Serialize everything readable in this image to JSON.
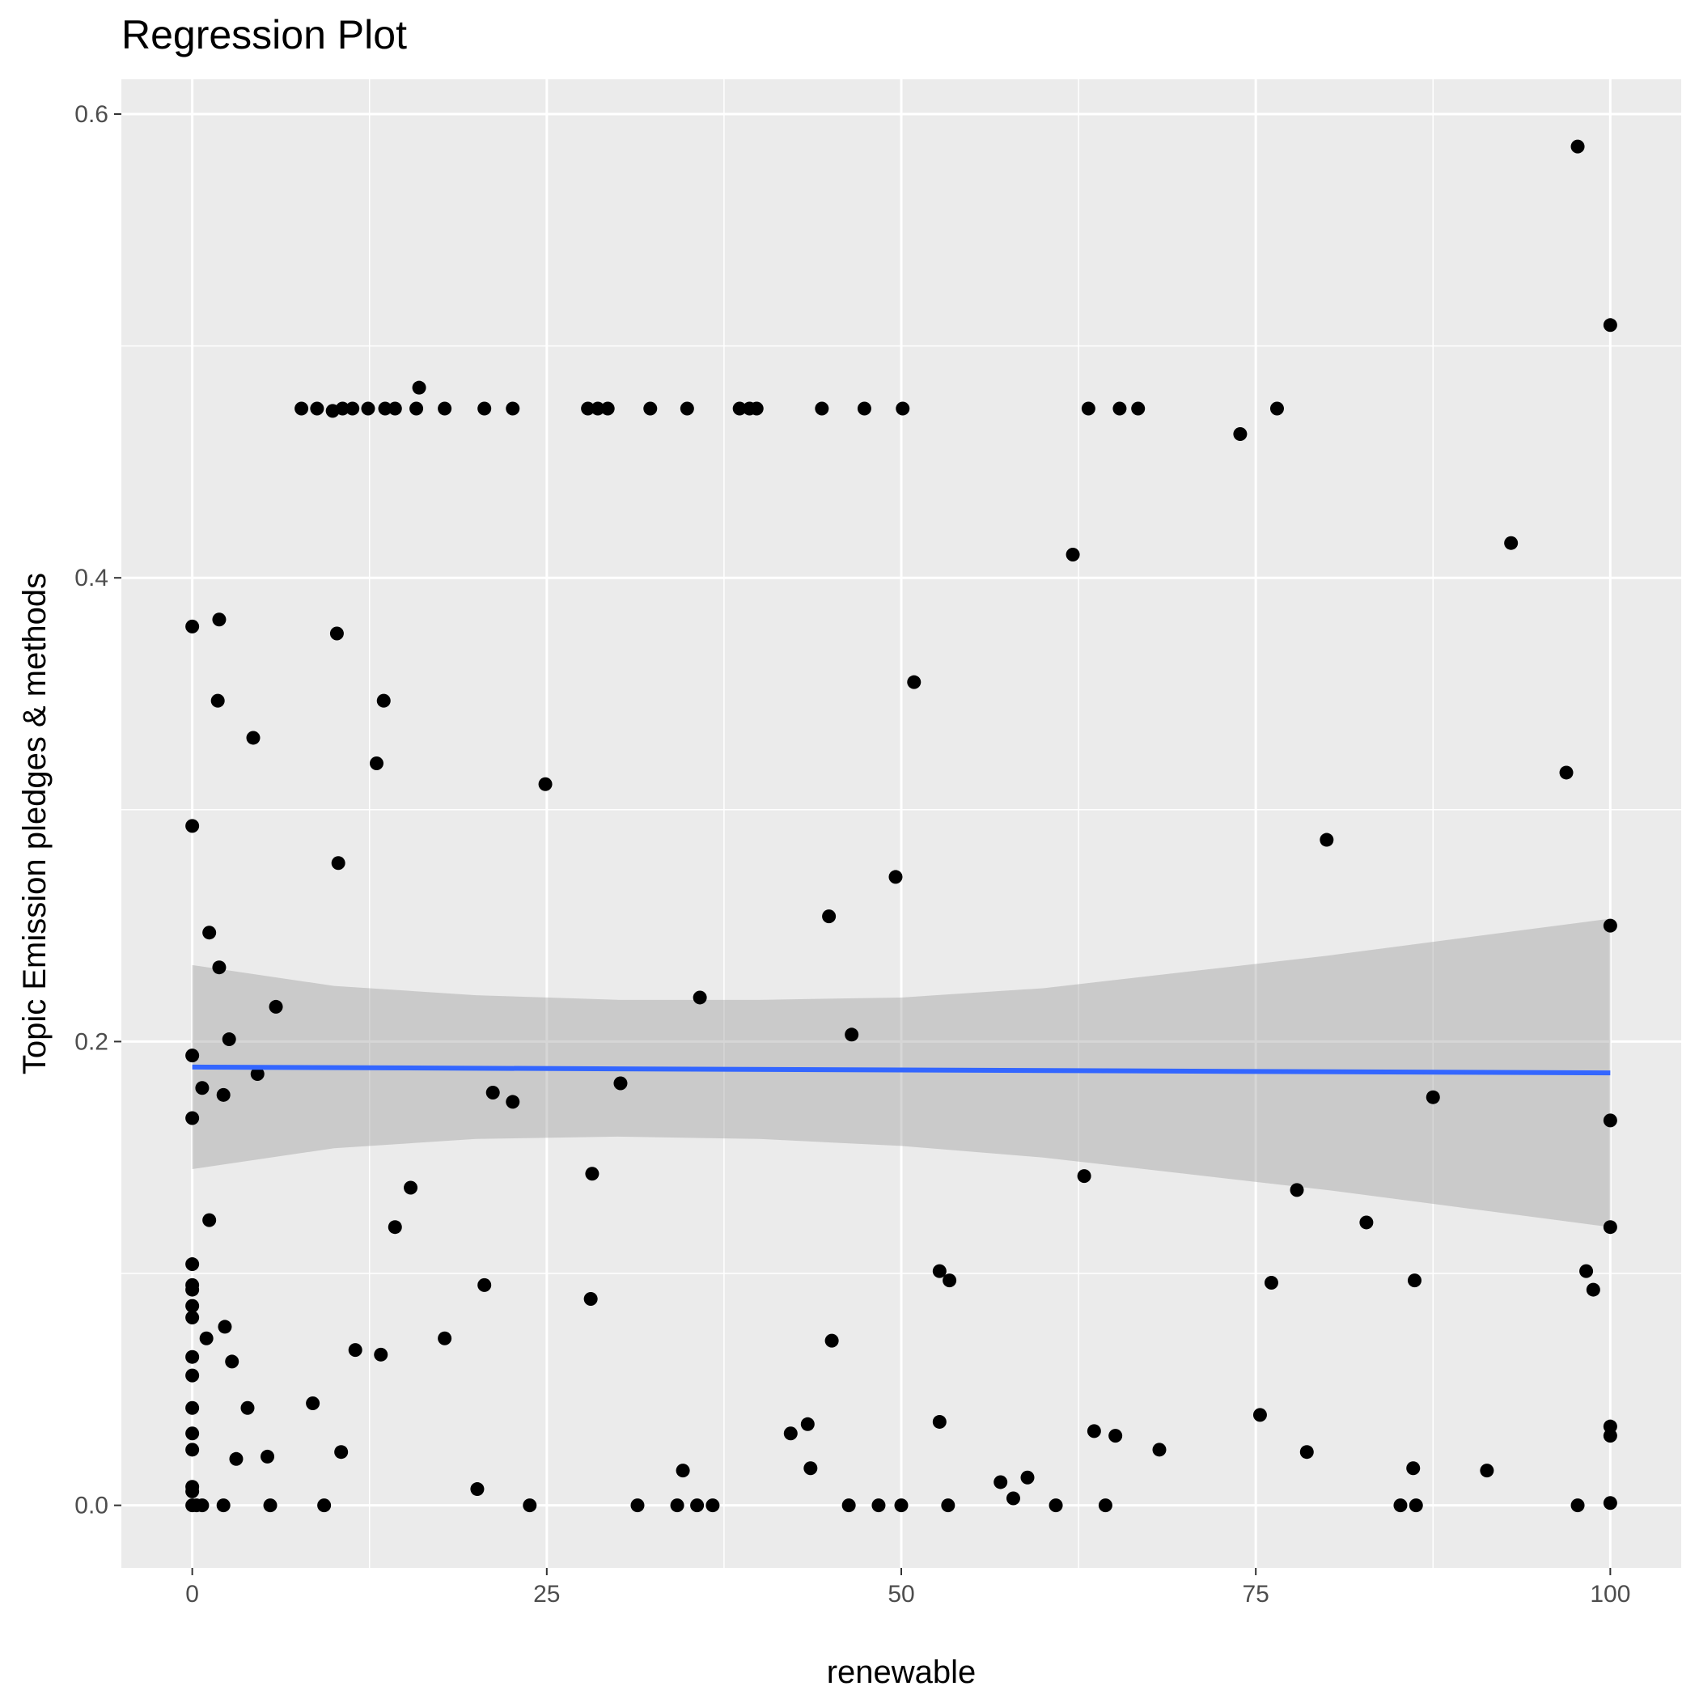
{
  "chart_data": {
    "type": "scatter",
    "title": "Regression Plot",
    "xlabel": "renewable",
    "ylabel": "Topic Emission pledges & methods",
    "xlim": [
      -5,
      105
    ],
    "ylim": [
      -0.027,
      0.615
    ],
    "x_ticks": [
      0,
      25,
      50,
      75,
      100
    ],
    "x_tick_labels": [
      "0",
      "25",
      "50",
      "75",
      "100"
    ],
    "y_ticks": [
      0.0,
      0.2,
      0.4,
      0.6
    ],
    "y_tick_labels": [
      "0.0",
      "0.2",
      "0.4",
      "0.6"
    ],
    "grid": true,
    "legend": "none",
    "colors": {
      "panel": "#ebebeb",
      "grid": "#ffffff",
      "points": "#000000",
      "regression_line": "#3366ff",
      "confidence_band": "#999999"
    },
    "regression": {
      "method": "lm",
      "x": [
        0,
        100
      ],
      "y": [
        0.189,
        0.1865
      ],
      "ci_x": [
        0,
        10,
        20,
        30,
        40,
        50,
        60,
        70,
        80,
        90,
        100
      ],
      "ci_lower": [
        0.145,
        0.154,
        0.158,
        0.159,
        0.158,
        0.155,
        0.15,
        0.143,
        0.136,
        0.128,
        0.12
      ],
      "ci_upper": [
        0.233,
        0.224,
        0.22,
        0.218,
        0.218,
        0.219,
        0.223,
        0.23,
        0.237,
        0.245,
        0.253
      ]
    },
    "series": [
      {
        "points": [
          [
            97.7,
            0.586
          ],
          [
            100,
            0.509
          ],
          [
            7.7,
            0.473
          ],
          [
            8.8,
            0.473
          ],
          [
            9.9,
            0.472
          ],
          [
            10.6,
            0.473
          ],
          [
            11.3,
            0.473
          ],
          [
            12.4,
            0.473
          ],
          [
            13.6,
            0.473
          ],
          [
            14.3,
            0.473
          ],
          [
            15.8,
            0.473
          ],
          [
            16.0,
            0.482
          ],
          [
            17.8,
            0.473
          ],
          [
            20.6,
            0.473
          ],
          [
            22.6,
            0.473
          ],
          [
            27.9,
            0.473
          ],
          [
            28.6,
            0.473
          ],
          [
            29.3,
            0.473
          ],
          [
            32.3,
            0.473
          ],
          [
            34.9,
            0.473
          ],
          [
            38.6,
            0.473
          ],
          [
            39.3,
            0.473
          ],
          [
            39.8,
            0.473
          ],
          [
            44.4,
            0.473
          ],
          [
            47.4,
            0.473
          ],
          [
            50.1,
            0.473
          ],
          [
            63.2,
            0.473
          ],
          [
            65.4,
            0.473
          ],
          [
            66.7,
            0.473
          ],
          [
            73.9,
            0.462
          ],
          [
            76.5,
            0.473
          ],
          [
            62.1,
            0.41
          ],
          [
            93.0,
            0.415
          ],
          [
            0,
            0.379
          ],
          [
            1.9,
            0.382
          ],
          [
            10.2,
            0.376
          ],
          [
            1.8,
            0.347
          ],
          [
            13.5,
            0.347
          ],
          [
            50.9,
            0.355
          ],
          [
            4.3,
            0.331
          ],
          [
            13.0,
            0.32
          ],
          [
            24.9,
            0.311
          ],
          [
            96.9,
            0.316
          ],
          [
            0,
            0.293
          ],
          [
            10.3,
            0.277
          ],
          [
            80.0,
            0.287
          ],
          [
            49.6,
            0.271
          ],
          [
            44.9,
            0.254
          ],
          [
            1.2,
            0.247
          ],
          [
            100,
            0.25
          ],
          [
            1.9,
            0.232
          ],
          [
            5.9,
            0.215
          ],
          [
            35.8,
            0.219
          ],
          [
            2.6,
            0.201
          ],
          [
            46.5,
            0.203
          ],
          [
            0,
            0.194
          ],
          [
            4.6,
            0.186
          ],
          [
            0.7,
            0.18
          ],
          [
            2.2,
            0.177
          ],
          [
            21.2,
            0.178
          ],
          [
            22.6,
            0.174
          ],
          [
            30.2,
            0.182
          ],
          [
            87.5,
            0.176
          ],
          [
            0,
            0.167
          ],
          [
            100,
            0.166
          ],
          [
            28.2,
            0.143
          ],
          [
            62.9,
            0.142
          ],
          [
            15.4,
            0.137
          ],
          [
            77.9,
            0.136
          ],
          [
            1.2,
            0.123
          ],
          [
            14.3,
            0.12
          ],
          [
            82.8,
            0.122
          ],
          [
            100,
            0.12
          ],
          [
            0,
            0.104
          ],
          [
            0,
            0.095
          ],
          [
            0,
            0.093
          ],
          [
            20.6,
            0.095
          ],
          [
            52.7,
            0.101
          ],
          [
            53.4,
            0.097
          ],
          [
            76.1,
            0.096
          ],
          [
            86.2,
            0.097
          ],
          [
            98.3,
            0.101
          ],
          [
            98.8,
            0.093
          ],
          [
            0,
            0.086
          ],
          [
            0,
            0.081
          ],
          [
            28.1,
            0.089
          ],
          [
            2.3,
            0.077
          ],
          [
            1.0,
            0.072
          ],
          [
            17.8,
            0.072
          ],
          [
            45.1,
            0.071
          ],
          [
            11.5,
            0.067
          ],
          [
            13.3,
            0.065
          ],
          [
            0,
            0.064
          ],
          [
            2.8,
            0.062
          ],
          [
            0,
            0.056
          ],
          [
            0,
            0.042
          ],
          [
            3.9,
            0.042
          ],
          [
            8.5,
            0.044
          ],
          [
            75.3,
            0.039
          ],
          [
            52.7,
            0.036
          ],
          [
            43.4,
            0.035
          ],
          [
            0,
            0.031
          ],
          [
            42.2,
            0.031
          ],
          [
            63.6,
            0.032
          ],
          [
            65.1,
            0.03
          ],
          [
            100,
            0.034
          ],
          [
            100,
            0.03
          ],
          [
            0,
            0.024
          ],
          [
            10.5,
            0.023
          ],
          [
            5.3,
            0.021
          ],
          [
            3.1,
            0.02
          ],
          [
            68.2,
            0.024
          ],
          [
            78.6,
            0.023
          ],
          [
            34.6,
            0.015
          ],
          [
            43.6,
            0.016
          ],
          [
            86.1,
            0.016
          ],
          [
            91.3,
            0.015
          ],
          [
            57.0,
            0.01
          ],
          [
            58.9,
            0.012
          ],
          [
            0,
            0.008
          ],
          [
            0,
            0.006
          ],
          [
            20.1,
            0.007
          ],
          [
            57.9,
            0.003
          ],
          [
            0,
            0.0
          ],
          [
            0.3,
            0.0
          ],
          [
            0.7,
            0.0
          ],
          [
            2.2,
            0.0
          ],
          [
            5.5,
            0.0
          ],
          [
            9.3,
            0.0
          ],
          [
            23.8,
            0.0
          ],
          [
            31.4,
            0.0
          ],
          [
            34.2,
            0.0
          ],
          [
            35.6,
            0.0
          ],
          [
            36.7,
            0.0
          ],
          [
            46.3,
            0.0
          ],
          [
            48.4,
            0.0
          ],
          [
            50.0,
            0.0
          ],
          [
            53.3,
            0.0
          ],
          [
            60.9,
            0.0
          ],
          [
            64.4,
            0.0
          ],
          [
            85.2,
            0.0
          ],
          [
            86.3,
            0.0
          ],
          [
            97.7,
            0.0
          ],
          [
            100,
            0.001
          ]
        ]
      }
    ]
  }
}
